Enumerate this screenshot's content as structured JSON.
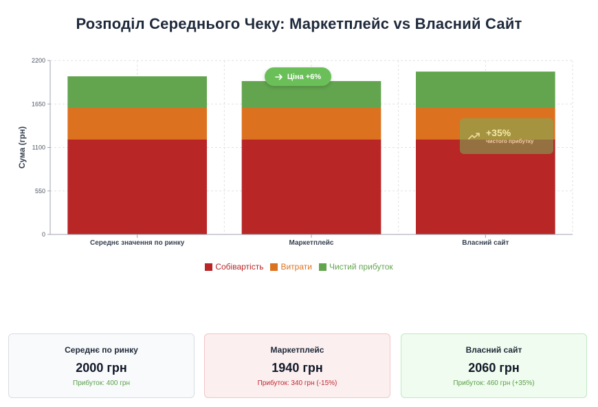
{
  "title": "Розподіл Середнього Чеку: Маркетплейс vs Власний Сайт",
  "colors": {
    "cost": "#b82626",
    "expenses": "#dc7220",
    "profit": "#63a54f",
    "grid": "#e2e2e2",
    "axis": "#9ca3af"
  },
  "chart_data": {
    "type": "bar",
    "stacked": true,
    "categories": [
      "Середнє значення по ринку",
      "Маркетплейс",
      "Власний сайт"
    ],
    "series": [
      {
        "name": "Собівартість",
        "values": [
          1200,
          1200,
          1200
        ]
      },
      {
        "name": "Витрати",
        "values": [
          400,
          400,
          400
        ]
      },
      {
        "name": "Чистий прибуток",
        "values": [
          400,
          340,
          460
        ]
      }
    ],
    "ylabel": "Сума (грн)",
    "ylim": [
      0,
      2200
    ],
    "yticks": [
      0,
      550,
      1100,
      1650,
      2200
    ],
    "grid": true,
    "legend_position": "bottom"
  },
  "annotations": {
    "price_badge": {
      "icon": "arrow-right-icon",
      "text": "Ціна +6%"
    },
    "profit_callout": {
      "icon": "trending-up-icon",
      "value": "+35%",
      "text": "чистого прибутку"
    }
  },
  "cards": [
    {
      "title": "Середнє по ринку",
      "price": "2000 грн",
      "profit": "Прибуток: 400 грн",
      "profit_color": "#5a9e47"
    },
    {
      "title": "Маркетплейс",
      "price": "1940 грн",
      "profit": "Прибуток: 340 грн (-15%)",
      "profit_color": "#c0262d"
    },
    {
      "title": "Власний сайт",
      "price": "2060 грн",
      "profit": "Прибуток: 460 грн (+35%)",
      "profit_color": "#5a9e47"
    }
  ]
}
